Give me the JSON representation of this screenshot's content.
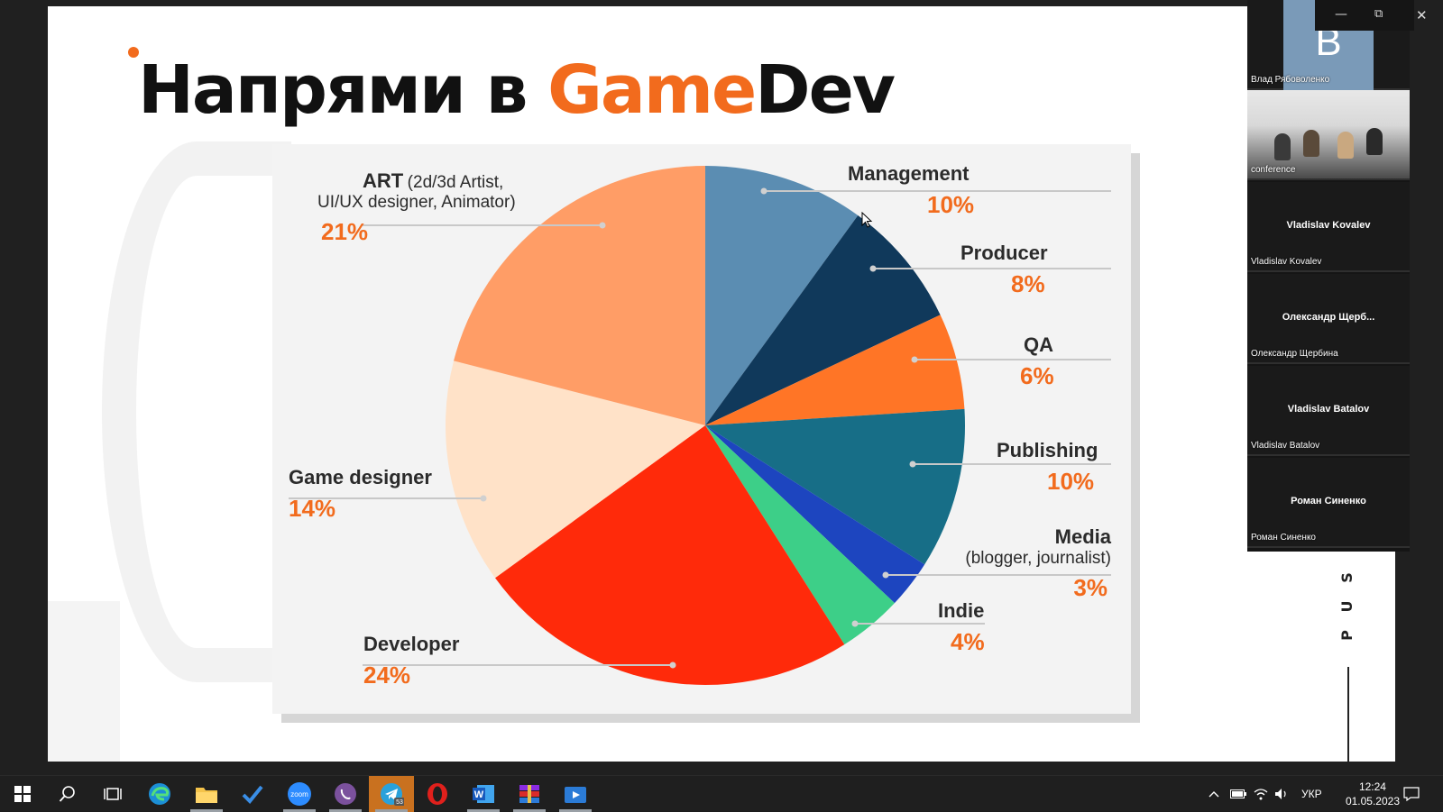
{
  "slide": {
    "title_part1": "Напрями в ",
    "title_accent": "Game",
    "title_part2": "Dev"
  },
  "chart_data": {
    "type": "pie",
    "title": "Напрями в GameDev",
    "slices": [
      {
        "label": "Management",
        "sub": "",
        "percent_text": "10%",
        "value": 10,
        "color": "#5b8db2"
      },
      {
        "label": "Producer",
        "sub": "",
        "percent_text": "8%",
        "value": 8,
        "color": "#10395b"
      },
      {
        "label": "QA",
        "sub": "",
        "percent_text": "6%",
        "value": 6,
        "color": "#ff7526"
      },
      {
        "label": "Publishing",
        "sub": "",
        "percent_text": "10%",
        "value": 10,
        "color": "#176e87"
      },
      {
        "label": "Media",
        "sub": "(blogger, journalist)",
        "percent_text": "3%",
        "value": 3,
        "color": "#1d45bf"
      },
      {
        "label": "Indie",
        "sub": "",
        "percent_text": "4%",
        "value": 4,
        "color": "#3dcf88"
      },
      {
        "label": "Developer",
        "sub": "",
        "percent_text": "24%",
        "value": 24,
        "color": "#ff2a0a"
      },
      {
        "label": "Game designer",
        "sub": "",
        "percent_text": "14%",
        "value": 14,
        "color": "#ffe2c8"
      },
      {
        "label": "ART",
        "sub": "(2d/3d Artist, UI/UX designer, Animator)",
        "percent_text": "21%",
        "value": 21,
        "color": "#ff9d66"
      }
    ],
    "art_sub_line1": "(2d/3d Artist,",
    "art_sub_line2": "UI/UX designer, Animator)"
  },
  "participants": [
    {
      "caption": "Влад Рябоволенко",
      "avatar_letter": "B",
      "big": ""
    },
    {
      "caption": "conference",
      "avatar_letter": "",
      "big": ""
    },
    {
      "caption": "Vladislav Kovalev",
      "avatar_letter": "",
      "big": "Vladislav Kovalev"
    },
    {
      "caption": "Олександр Щербина",
      "avatar_letter": "",
      "big": "Олександр  Щерб..."
    },
    {
      "caption": "Vladislav Batalov",
      "avatar_letter": "",
      "big": "Vladislav Batalov"
    },
    {
      "caption": "Роман Синенко",
      "avatar_letter": "",
      "big": "Роман Синенко"
    }
  ],
  "vertical_text": [
    "S",
    "U",
    "P"
  ],
  "taskbar": {
    "icons": [
      "windows-start-icon",
      "search-icon",
      "task-view-icon",
      "edge-icon",
      "file-explorer-icon",
      "todo-icon",
      "zoom-icon",
      "viber-icon",
      "telegram-icon",
      "opera-icon",
      "word-icon",
      "winrar-icon",
      "media-player-icon"
    ],
    "telegram_badge": "53",
    "zoom_label": "zoom",
    "language": "УКР",
    "time": "12:24",
    "date": "01.05.2023"
  }
}
